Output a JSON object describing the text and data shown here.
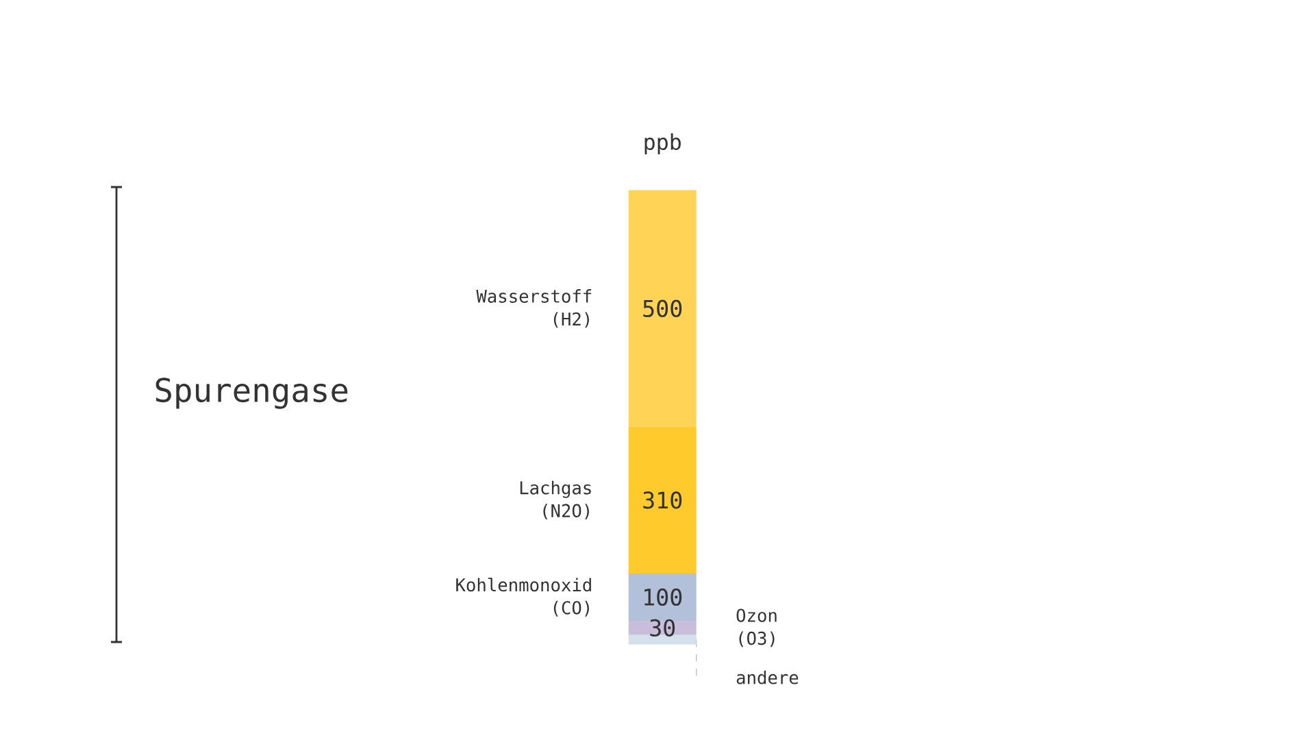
{
  "chart_data": {
    "type": "bar",
    "stacked": true,
    "categories": [
      null
    ],
    "ylabel": "ppb",
    "annotations": [
      "Spurengase"
    ],
    "series": [
      {
        "name": "andere",
        "color": "#d3e2ea",
        "values": [
          20
        ],
        "value_labels": [
          null
        ]
      },
      {
        "name": "Ozon (O3)",
        "color": "#c9bddc",
        "values": [
          30
        ],
        "value_labels": [
          "30"
        ]
      },
      {
        "name": "Kohlenmonoxid (CO)",
        "color": "#b3c0da",
        "values": [
          100
        ],
        "value_labels": [
          "100"
        ]
      },
      {
        "name": "Lachgas (N2O)",
        "color": "#ffca2c",
        "values": [
          310
        ],
        "value_labels": [
          "310"
        ]
      },
      {
        "name": "Wasserstoff (H2)",
        "color": "#ffd456",
        "values": [
          500
        ],
        "value_labels": [
          "500"
        ]
      }
    ]
  }
}
